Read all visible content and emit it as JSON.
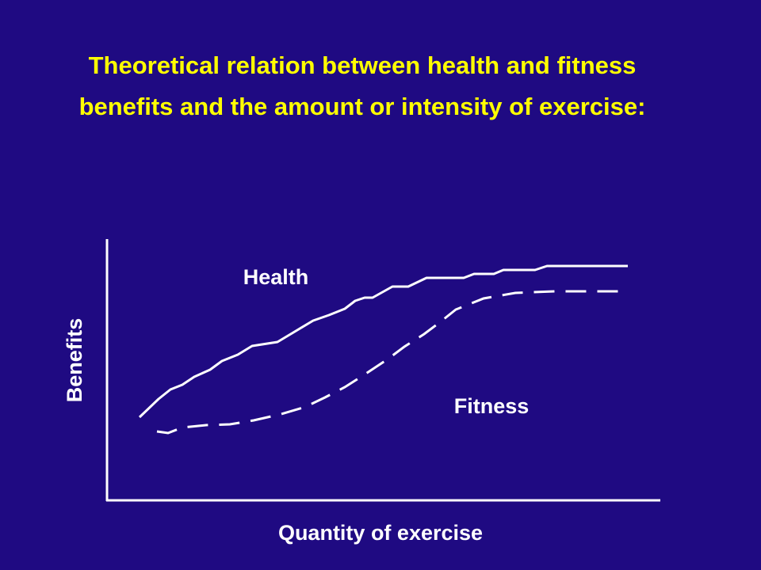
{
  "title": {
    "line1": "Theoretical relation between health and fitness",
    "line2": "benefits and the amount or intensity of exercise:"
  },
  "diagram": {
    "y_axis_label": "Benefits",
    "x_axis_label": "Quantity of exercise",
    "curves": [
      {
        "label": "Health"
      },
      {
        "label": "Fitness"
      }
    ]
  }
}
